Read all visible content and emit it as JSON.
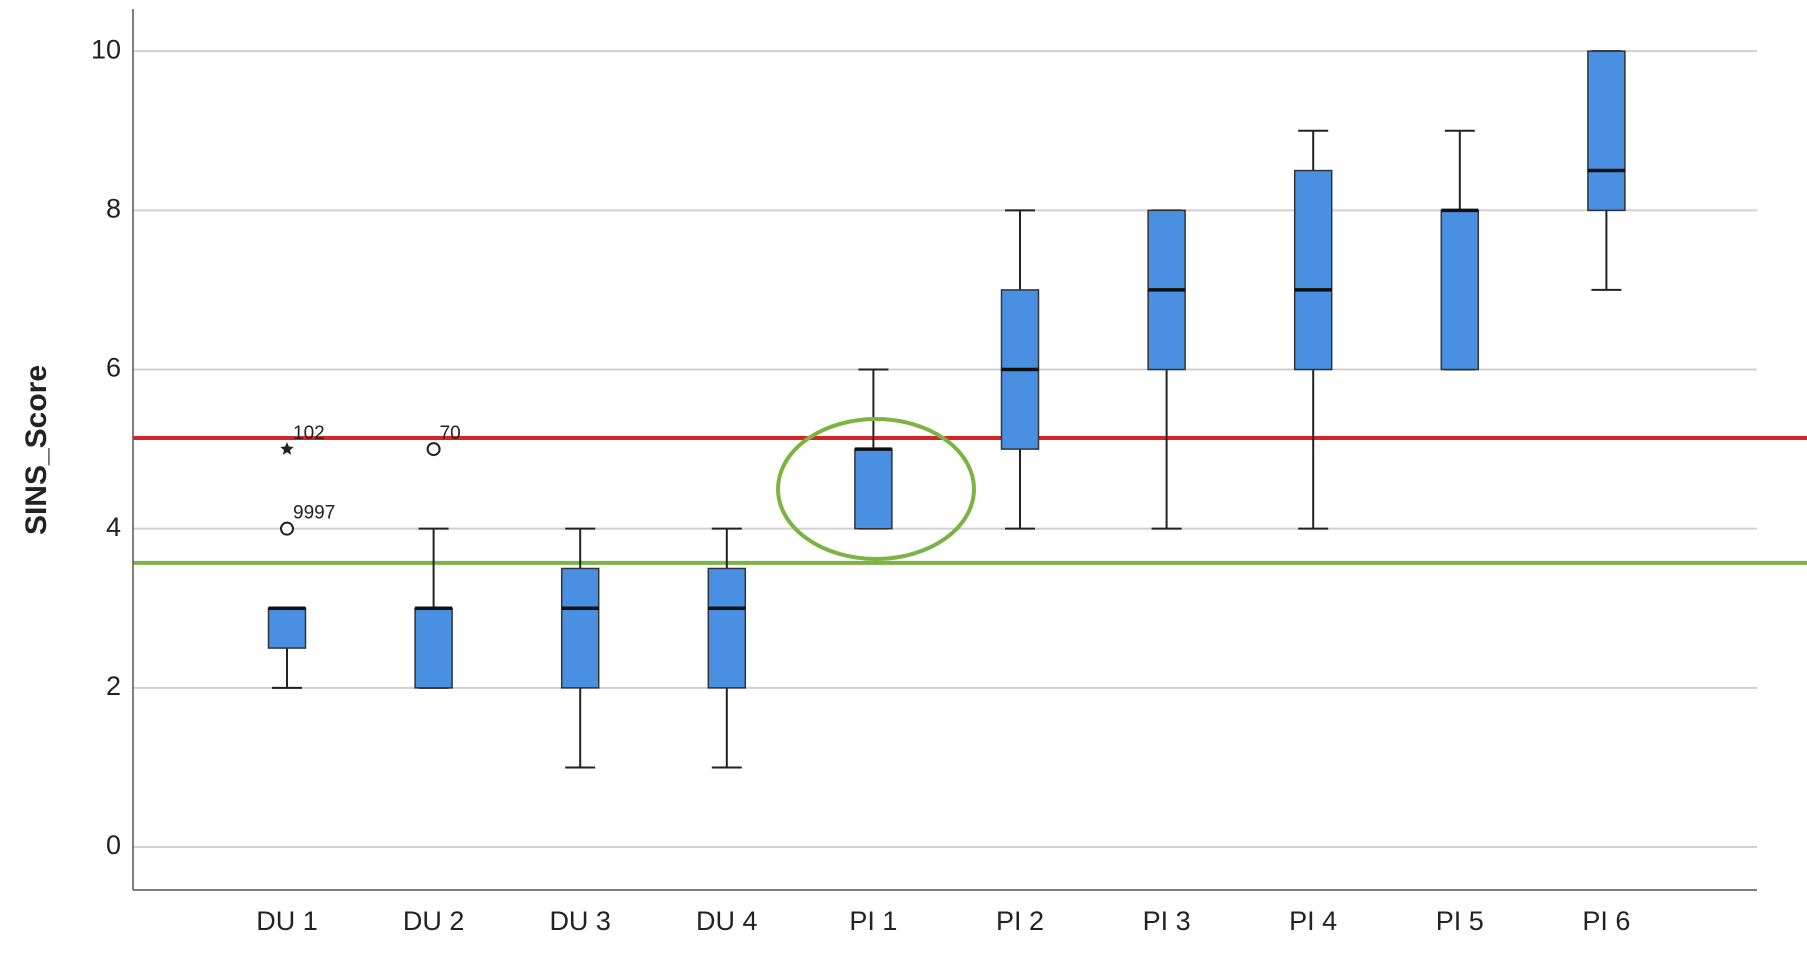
{
  "chart_data": {
    "type": "box",
    "y_label": "SINS_Score",
    "categories": [
      "DU 1",
      "DU 2",
      "DU 3",
      "DU 4",
      "PI 1",
      "PI 2",
      "PI 3",
      "PI 4",
      "PI 5",
      "PI 6"
    ],
    "min": [
      2,
      2,
      1,
      1,
      4,
      4,
      4,
      4,
      6,
      7
    ],
    "q1": [
      2.5,
      2,
      2,
      2,
      4,
      5,
      6,
      6,
      6,
      8
    ],
    "median": [
      3,
      3,
      3,
      3,
      5,
      6,
      7,
      7,
      8,
      8.5
    ],
    "q3": [
      3,
      3,
      3.5,
      3.5,
      5,
      7,
      8,
      8.5,
      8,
      10
    ],
    "max": [
      3,
      4,
      4,
      4,
      6,
      8,
      8,
      9,
      9,
      10
    ],
    "outliers": [
      [
        {
          "value": 4,
          "label": "9997",
          "marker": "circle"
        },
        {
          "value": 5,
          "label": "102",
          "marker": "star"
        }
      ],
      [
        {
          "value": 5,
          "label": "70",
          "marker": "circle"
        }
      ],
      [],
      [],
      [],
      [],
      [],
      [],
      [],
      []
    ],
    "color": "#4a90e2",
    "ylim": [
      -0.54,
      10.53
    ],
    "yticks": [
      0,
      2,
      4,
      6,
      8,
      10
    ],
    "grid": true,
    "reference_lines": [
      {
        "value": 5.14,
        "color": "#d9232a"
      },
      {
        "value": 3.57,
        "color": "#7cb342"
      }
    ]
  }
}
